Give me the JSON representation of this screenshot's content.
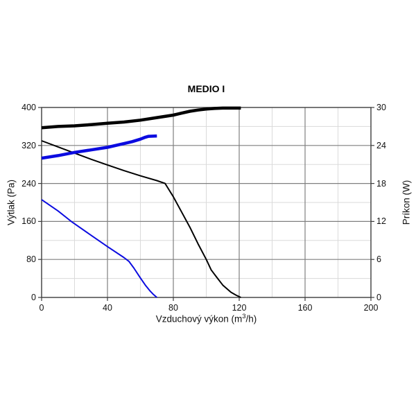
{
  "chart": {
    "title": "MEDIO I",
    "ylabel_left": "Výtlak (Pa)",
    "ylabel_right": "Príkon (W)",
    "xlabel_parts": {
      "prefix": "Vzduchový výkon (m",
      "sup": "3",
      "suffix": "/h)"
    }
  },
  "chart_data": {
    "type": "line",
    "title": "MEDIO I",
    "xlabel": "Vzduchový výkon (m3/h)",
    "ylabel_left": "Výtlak (Pa)",
    "ylabel_right": "Príkon (W)",
    "legend": "none",
    "grid": true,
    "x_axis": {
      "min": 0,
      "max": 200,
      "ticks": [
        0,
        40,
        80,
        120,
        160,
        200
      ],
      "minor_step": 20
    },
    "y_axis_left": {
      "min": 0,
      "max": 400,
      "ticks": [
        0,
        80,
        160,
        240,
        320,
        400
      ],
      "minor_step": 40
    },
    "y_axis_right": {
      "min": 0,
      "max": 30,
      "ticks": [
        0,
        6,
        12,
        18,
        24,
        30
      ]
    },
    "colors": {
      "black": "#000000",
      "blue": "#0b0be0",
      "grid_major": "#7f7f7f",
      "grid_minor": "#dadada",
      "axis_border": "#3c3c3c"
    },
    "series": [
      {
        "name": "pressure-curve-speed-2-black",
        "axis": "left",
        "color": "#000000",
        "width": 2,
        "points": [
          [
            0,
            330
          ],
          [
            10,
            317
          ],
          [
            20,
            304
          ],
          [
            30,
            291
          ],
          [
            40,
            279
          ],
          [
            50,
            267
          ],
          [
            60,
            256
          ],
          [
            70,
            246
          ],
          [
            75,
            240
          ],
          [
            80,
            212
          ],
          [
            85,
            180
          ],
          [
            90,
            148
          ],
          [
            95,
            113
          ],
          [
            100,
            80
          ],
          [
            103,
            58
          ],
          [
            106,
            44
          ],
          [
            110,
            26
          ],
          [
            115,
            11
          ],
          [
            118,
            5
          ],
          [
            121,
            0
          ]
        ]
      },
      {
        "name": "pressure-curve-speed-1-blue",
        "axis": "left",
        "color": "#0b0be0",
        "width": 2,
        "points": [
          [
            0,
            206
          ],
          [
            10,
            182
          ],
          [
            18,
            160
          ],
          [
            30,
            131
          ],
          [
            40,
            107
          ],
          [
            50,
            84
          ],
          [
            53,
            76
          ],
          [
            56,
            62
          ],
          [
            60,
            41
          ],
          [
            63,
            26
          ],
          [
            66,
            13
          ],
          [
            68,
            6
          ],
          [
            70,
            0
          ]
        ]
      },
      {
        "name": "power-curve-speed-2-black",
        "axis": "right",
        "color": "#000000",
        "width": 4.5,
        "points": [
          [
            0,
            26.8
          ],
          [
            10,
            27.0
          ],
          [
            20,
            27.1
          ],
          [
            30,
            27.3
          ],
          [
            40,
            27.5
          ],
          [
            50,
            27.7
          ],
          [
            60,
            28.0
          ],
          [
            70,
            28.4
          ],
          [
            80,
            28.8
          ],
          [
            85,
            29.1
          ],
          [
            90,
            29.4
          ],
          [
            95,
            29.6
          ],
          [
            100,
            29.75
          ],
          [
            105,
            29.85
          ],
          [
            110,
            29.9
          ],
          [
            121,
            29.9
          ]
        ]
      },
      {
        "name": "power-curve-speed-1-blue",
        "axis": "right",
        "color": "#0b0be0",
        "width": 4.5,
        "points": [
          [
            0,
            22.0
          ],
          [
            10,
            22.4
          ],
          [
            20,
            22.9
          ],
          [
            30,
            23.3
          ],
          [
            40,
            23.7
          ],
          [
            50,
            24.3
          ],
          [
            55,
            24.6
          ],
          [
            60,
            25.0
          ],
          [
            63,
            25.3
          ],
          [
            65,
            25.45
          ],
          [
            70,
            25.5
          ]
        ]
      }
    ]
  }
}
